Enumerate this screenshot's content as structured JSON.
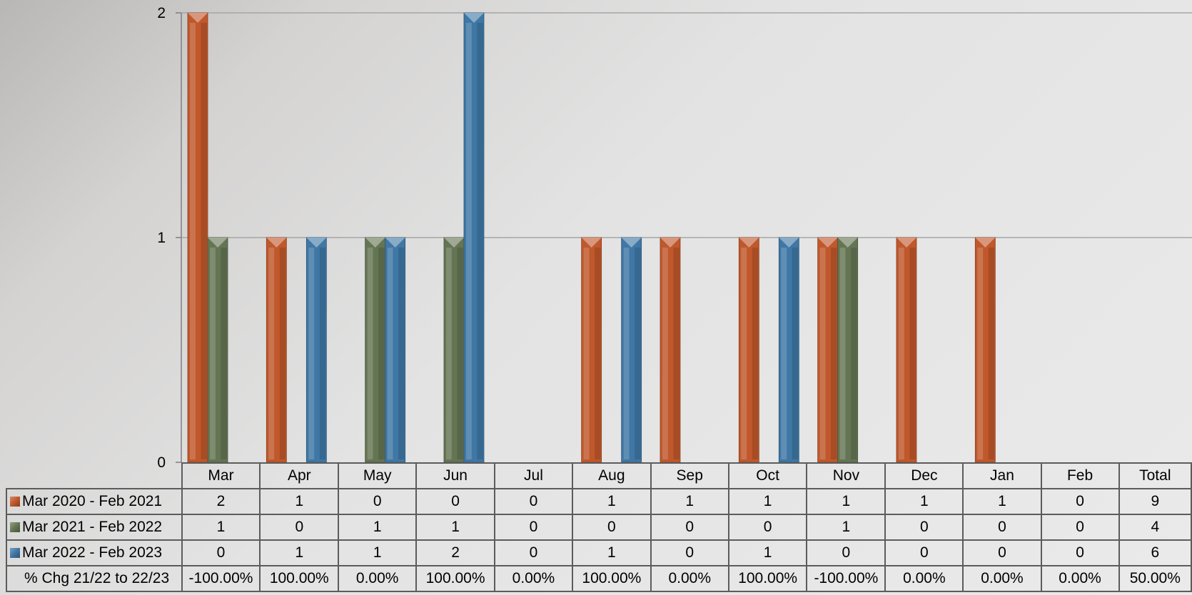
{
  "chart_data": {
    "type": "bar",
    "categories": [
      "Mar",
      "Apr",
      "May",
      "Jun",
      "Jul",
      "Aug",
      "Sep",
      "Oct",
      "Nov",
      "Dec",
      "Jan",
      "Feb"
    ],
    "ylim": [
      0,
      2
    ],
    "yticks": [
      "0",
      "1",
      "2"
    ],
    "grid": true,
    "series": [
      {
        "name": "Mar 2020 - Feb 2021",
        "color": "#c0582b",
        "values": [
          2,
          1,
          0,
          0,
          0,
          1,
          1,
          1,
          1,
          1,
          1,
          0
        ]
      },
      {
        "name": "Mar 2021 - Feb 2022",
        "color": "#647553",
        "values": [
          1,
          0,
          1,
          1,
          0,
          0,
          0,
          0,
          1,
          0,
          0,
          0
        ]
      },
      {
        "name": "Mar 2022 - Feb 2023",
        "color": "#3f77a5",
        "values": [
          0,
          1,
          1,
          2,
          0,
          1,
          0,
          1,
          0,
          0,
          0,
          0
        ]
      }
    ]
  },
  "table": {
    "total_header": "Total",
    "rows": [
      {
        "label": "Mar 2020 - Feb 2021",
        "color": "#c0582b",
        "cells": [
          "2",
          "1",
          "0",
          "0",
          "0",
          "1",
          "1",
          "1",
          "1",
          "1",
          "1",
          "0",
          "9"
        ]
      },
      {
        "label": "Mar 2021 - Feb 2022",
        "color": "#647553",
        "cells": [
          "1",
          "0",
          "1",
          "1",
          "0",
          "0",
          "0",
          "0",
          "1",
          "0",
          "0",
          "0",
          "4"
        ]
      },
      {
        "label": "Mar 2022 - Feb 2023",
        "color": "#3f77a5",
        "cells": [
          "0",
          "1",
          "1",
          "2",
          "0",
          "1",
          "0",
          "1",
          "0",
          "0",
          "0",
          "0",
          "6"
        ]
      },
      {
        "label": "% Chg 21/22 to 22/23",
        "color": "",
        "cells": [
          "-100.00%",
          "100.00%",
          "0.00%",
          "100.00%",
          "0.00%",
          "100.00%",
          "0.00%",
          "100.00%",
          "-100.00%",
          "0.00%",
          "0.00%",
          "0.00%",
          "50.00%"
        ]
      }
    ]
  }
}
